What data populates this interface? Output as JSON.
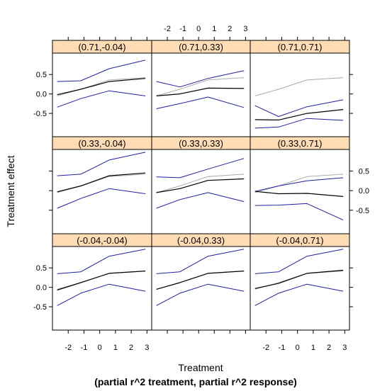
{
  "chart_data": {
    "type": "line",
    "layout": "3x3 lattice",
    "xlabel": "Treatment",
    "xlabel_sub": "(partial r^2 treatment, partial r^2 response)",
    "ylabel": "Treatment effect",
    "xlim": [
      -3,
      3.3
    ],
    "ylim": [
      -1.1,
      1.05
    ],
    "xticks": [
      -2,
      -1,
      0,
      1,
      2,
      3
    ],
    "yticks": [
      0.5,
      0.0,
      -0.5
    ],
    "ytick_labels": [
      "0.5",
      "0.0",
      "-0.5"
    ],
    "x": [
      -2.7,
      -1.2,
      0.6,
      2.9
    ],
    "colors": {
      "bounds": "#1f1fa0",
      "estimate": "#000000",
      "reference": "#aaaaaa",
      "strip": "#ffdcb4"
    },
    "reference_curve": [
      -0.05,
      0.12,
      0.36,
      0.42
    ],
    "panels": [
      {
        "label": "(0.71,-0.04)",
        "estimate": [
          -0.02,
          0.12,
          0.32,
          0.4
        ],
        "upper": [
          0.32,
          0.34,
          0.65,
          0.87
        ],
        "lower": [
          -0.34,
          -0.12,
          0.08,
          -0.05
        ]
      },
      {
        "label": "(0.71,0.33)",
        "estimate": [
          -0.05,
          0.0,
          0.15,
          0.14
        ],
        "upper": [
          0.32,
          0.18,
          0.4,
          0.6
        ],
        "lower": [
          -0.38,
          -0.25,
          -0.08,
          -0.35
        ]
      },
      {
        "label": "(0.71,0.71)",
        "estimate": [
          -0.66,
          -0.67,
          -0.5,
          -0.4
        ],
        "upper": [
          -0.3,
          -0.58,
          -0.33,
          -0.15
        ],
        "lower": [
          -0.88,
          -0.85,
          -0.63,
          -0.68
        ]
      },
      {
        "label": "(0.33,-0.04)",
        "estimate": [
          -0.03,
          0.12,
          0.38,
          0.45
        ],
        "upper": [
          0.38,
          0.42,
          0.78,
          0.98
        ],
        "lower": [
          -0.45,
          -0.2,
          0.05,
          -0.08
        ]
      },
      {
        "label": "(0.33,0.33)",
        "estimate": [
          -0.05,
          0.05,
          0.26,
          0.3
        ],
        "upper": [
          0.35,
          0.33,
          0.55,
          0.82
        ],
        "lower": [
          -0.45,
          -0.23,
          -0.05,
          -0.28
        ]
      },
      {
        "label": "(0.33,0.71)",
        "estimate": [
          -0.02,
          -0.08,
          -0.07,
          -0.15
        ],
        "upper": [
          -0.02,
          0.12,
          0.25,
          0.33
        ],
        "lower": [
          -0.38,
          -0.37,
          -0.33,
          -0.75
        ]
      },
      {
        "label": "(-0.04,-0.04)",
        "estimate": [
          -0.07,
          0.12,
          0.36,
          0.42
        ],
        "upper": [
          0.35,
          0.4,
          0.8,
          0.98
        ],
        "lower": [
          -0.47,
          -0.15,
          0.08,
          -0.1
        ]
      },
      {
        "label": "(-0.04,0.33)",
        "estimate": [
          -0.05,
          0.12,
          0.36,
          0.42
        ],
        "upper": [
          0.35,
          0.4,
          0.8,
          0.98
        ],
        "lower": [
          -0.47,
          -0.15,
          0.08,
          -0.1
        ]
      },
      {
        "label": "(-0.04,0.71)",
        "estimate": [
          -0.03,
          0.1,
          0.36,
          0.44
        ],
        "upper": [
          0.35,
          0.4,
          0.8,
          0.98
        ],
        "lower": [
          -0.47,
          -0.15,
          0.08,
          -0.1
        ]
      }
    ]
  }
}
